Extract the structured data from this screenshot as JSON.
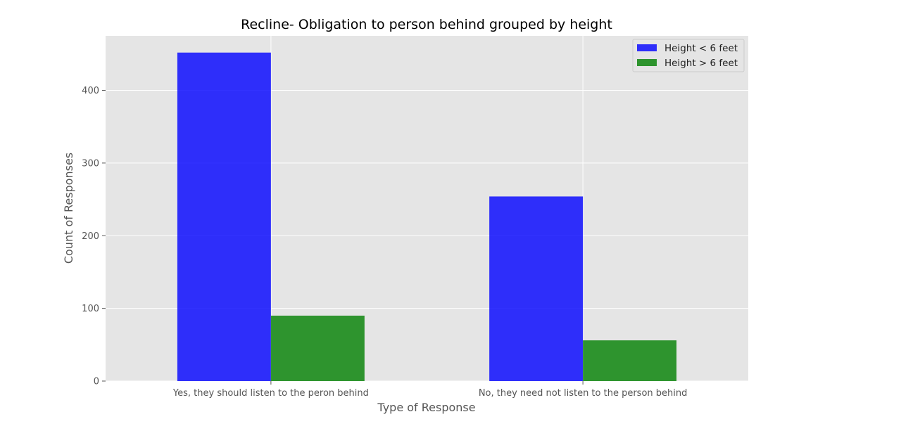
{
  "chart_data": {
    "type": "bar",
    "title": "Recline- Obligation to person behind grouped by height",
    "xlabel": "Type of Response",
    "ylabel": "Count of Responses",
    "categories": [
      "Yes, they should listen to the peron behind",
      "No, they need not listen to the person behind"
    ],
    "series": [
      {
        "name": "Height < 6 feet",
        "values": [
          452,
          254
        ],
        "color": "#0000ff"
      },
      {
        "name": "Height > 6 feet",
        "values": [
          90,
          56
        ],
        "color": "#008000"
      }
    ],
    "ylim": [
      0,
      475
    ],
    "yticks": [
      0,
      100,
      200,
      300,
      400
    ],
    "grid": true,
    "legend_position": "top-right",
    "background_color": "#e5e5e5",
    "grid_color": "#ffffff"
  }
}
